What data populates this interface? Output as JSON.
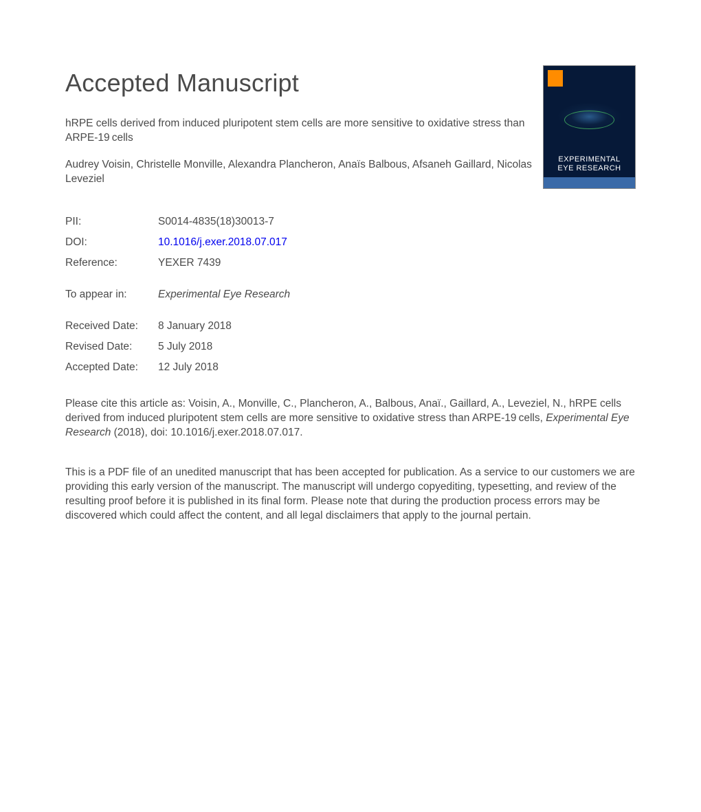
{
  "heading": "Accepted Manuscript",
  "journal_cover": {
    "title_line1": "EXPERIMENTAL",
    "title_line2": "EYE RESEARCH",
    "background_color": "#061938",
    "logo_color": "#ff8c00",
    "bar_color": "#3a6aa8"
  },
  "article_title": "hRPE cells derived from induced pluripotent stem cells are more sensitive to oxidative stress than ARPE-19 cells",
  "authors": "Audrey Voisin, Christelle Monville, Alexandra Plancheron, Anaïs Balbous, Afsaneh Gaillard, Nicolas Leveziel",
  "meta": {
    "pii_label": "PII:",
    "pii_value": "S0014-4835(18)30013-7",
    "doi_label": "DOI:",
    "doi_value": "10.1016/j.exer.2018.07.017",
    "reference_label": "Reference:",
    "reference_value": "YEXER 7439",
    "appear_label": "To appear in:",
    "appear_value": "Experimental Eye Research",
    "received_label": "Received Date:",
    "received_value": "8 January 2018",
    "revised_label": "Revised Date:",
    "revised_value": "5 July 2018",
    "accepted_label": "Accepted Date:",
    "accepted_value": "12 July 2018"
  },
  "citation_prefix": "Please cite this article as: Voisin, A., Monville, C., Plancheron, A., Balbous, Anaï., Gaillard, A., Leveziel, N., hRPE cells derived from induced pluripotent stem cells are more sensitive to oxidative stress than ARPE-19 cells, ",
  "citation_journal": "Experimental Eye Research",
  "citation_suffix": " (2018), doi: 10.1016/j.exer.2018.07.017.",
  "disclaimer": "This is a PDF file of an unedited manuscript that has been accepted for publication. As a service to our customers we are providing this early version of the manuscript. The manuscript will undergo copyediting, typesetting, and review of the resulting proof before it is published in its final form. Please note that during the production process errors may be discovered which could affect the content, and all legal disclaimers that apply to the journal pertain.",
  "colors": {
    "text": "#4a4a4a",
    "link": "#0000ee",
    "background": "#ffffff"
  },
  "typography": {
    "heading_fontsize": 36,
    "body_fontsize": 15.5,
    "font_family": "Arial, Helvetica, sans-serif"
  }
}
